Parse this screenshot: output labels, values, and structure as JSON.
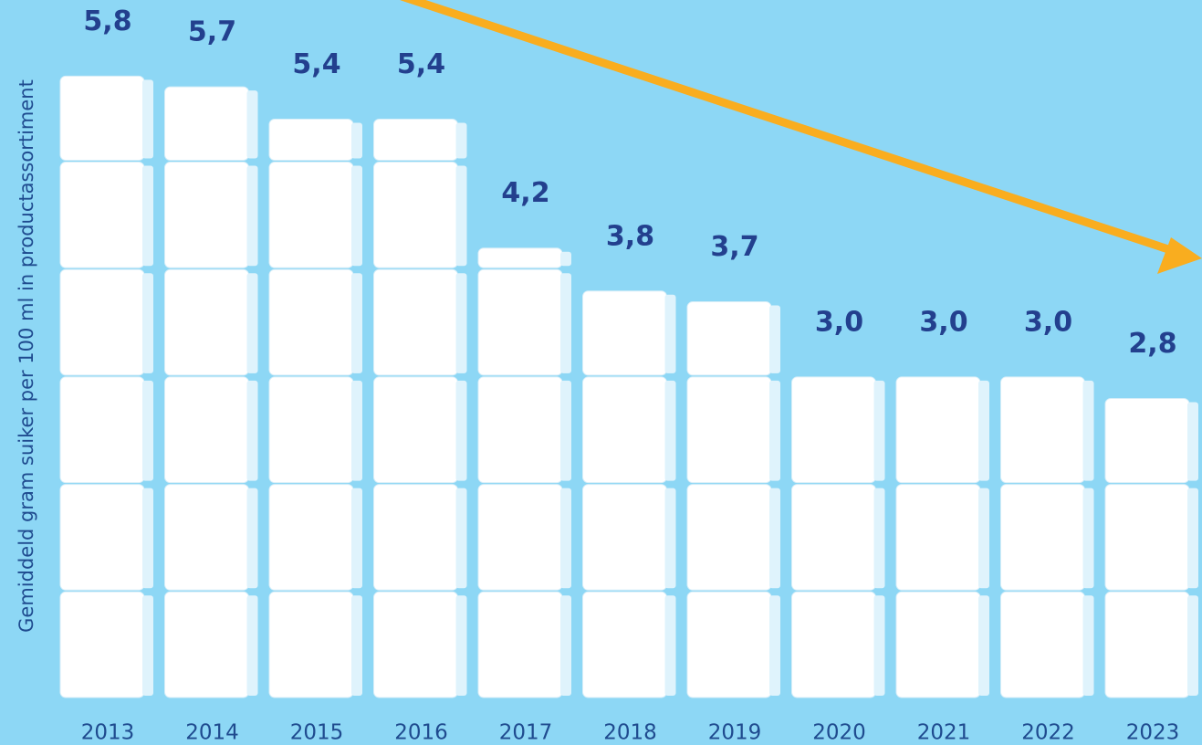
{
  "chart_data": {
    "type": "bar",
    "y_label": "Gemiddeld gram suiker per 100 ml in productassortiment",
    "categories": [
      "2013",
      "2014",
      "2015",
      "2016",
      "2017",
      "2018",
      "2019",
      "2020",
      "2021",
      "2022",
      "2023"
    ],
    "values": [
      5.8,
      5.7,
      5.4,
      5.4,
      4.2,
      3.8,
      3.7,
      3.0,
      3.0,
      3.0,
      2.8
    ],
    "value_labels": [
      "5,8",
      "5,7",
      "5,4",
      "5,4",
      "4,2",
      "3,8",
      "3,7",
      "3,0",
      "3,0",
      "3,0",
      "2,8"
    ],
    "color": "#ffffff",
    "ylim": [
      0,
      6.5
    ]
  }
}
